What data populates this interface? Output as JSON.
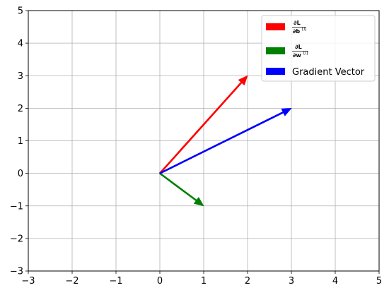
{
  "chart_data": {
    "type": "quiver",
    "xlim": [
      -3,
      5
    ],
    "ylim": [
      -3,
      5
    ],
    "xticks": [
      "−3",
      "−2",
      "−1",
      "0",
      "1",
      "2",
      "3",
      "4",
      "5"
    ],
    "yticks": [
      "−3",
      "−2",
      "−1",
      "0",
      "1",
      "2",
      "3",
      "4",
      "5"
    ],
    "grid": true,
    "legend_position": "top-right",
    "series": [
      {
        "legend": {
          "numerator": "∂L",
          "denominator": "∂b",
          "sup": "[l]"
        },
        "color": "#ff0000",
        "origin": [
          0,
          0
        ],
        "vector": [
          2,
          3
        ]
      },
      {
        "legend": {
          "numerator": "∂L",
          "denominator": "∂w",
          "sup": "[l]"
        },
        "color": "#008000",
        "origin": [
          0,
          0
        ],
        "vector": [
          1,
          -1
        ]
      },
      {
        "name": "Gradient Vector",
        "color": "#0000ff",
        "origin": [
          0,
          0
        ],
        "vector": [
          3,
          2
        ]
      }
    ]
  }
}
